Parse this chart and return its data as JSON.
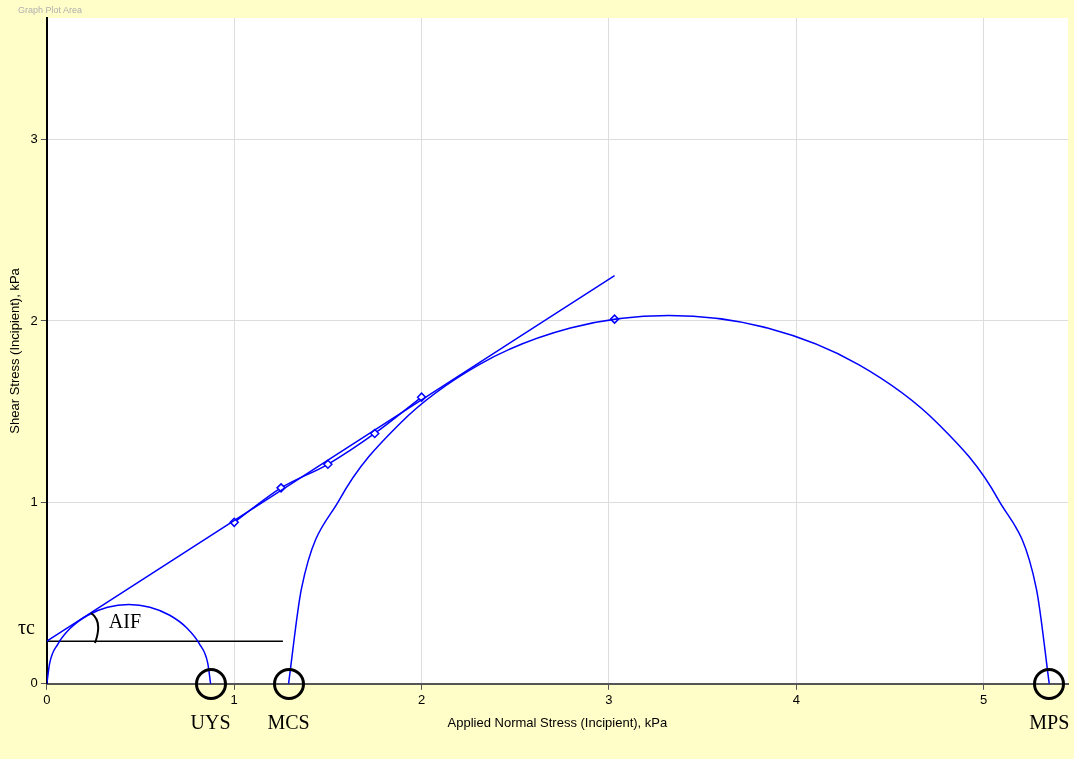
{
  "chart_data": {
    "type": "line",
    "xlabel": "Applied Normal Stress (Incipient), kPa",
    "ylabel": "Shear Stress (Incipient), kPa",
    "xlim": [
      0,
      5.45
    ],
    "ylim": [
      0,
      3.67
    ],
    "xticks": [
      0,
      1,
      2,
      3,
      4,
      5
    ],
    "yticks": [
      0,
      1,
      2,
      3
    ],
    "grid": true,
    "legend": false,
    "line_style": "solid",
    "series": [
      {
        "type": "line",
        "color": "#0000ff",
        "marker": "none",
        "x": [
          0,
          0.015,
          0.059,
          0.128,
          0.219,
          0.324,
          0.437,
          0.55,
          0.656,
          0.746,
          0.815,
          0.859,
          0.874
        ],
        "values": [
          0,
          0.113,
          0.219,
          0.309,
          0.378,
          0.422,
          0.437,
          0.422,
          0.378,
          0.309,
          0.219,
          0.113,
          0
        ]
      },
      {
        "type": "line",
        "color": "#0000ff",
        "marker": "none",
        "x": [
          1.29,
          1.359,
          1.562,
          1.885,
          2.305,
          2.794,
          3.32,
          3.846,
          4.335,
          4.755,
          5.078,
          5.281,
          5.35
        ],
        "values": [
          0,
          0.525,
          1.015,
          1.435,
          1.758,
          1.961,
          2.03,
          1.961,
          1.758,
          1.435,
          1.015,
          0.525,
          0
        ]
      },
      {
        "type": "line",
        "color": "#0000ff",
        "marker": "none",
        "x": [
          0,
          3.03
        ],
        "values": [
          0.235,
          2.25
        ]
      },
      {
        "type": "line",
        "color": "#0000ff",
        "marker": "diamond",
        "x": [
          1.0,
          1.25,
          1.5,
          1.75,
          2.0
        ],
        "values": [
          0.89,
          1.08,
          1.21,
          1.38,
          1.58
        ]
      },
      {
        "type": "scatter",
        "color": "#0000ff",
        "marker": "diamond",
        "x": [
          3.03
        ],
        "values": [
          2.01
        ]
      },
      {
        "type": "line",
        "color": "#000000",
        "marker": "none",
        "x": [
          0,
          1.26
        ],
        "values": [
          0.235,
          0.235
        ]
      }
    ],
    "annotations": [
      "Graph Plot Area",
      {
        "text": "τc",
        "x": 0,
        "y": 0.235
      },
      "AIF",
      {
        "text": "UYS",
        "x": 0.874,
        "y": 0
      },
      {
        "text": "MCS",
        "x": 1.29,
        "y": 0
      },
      {
        "text": "MPS",
        "x": 5.35,
        "y": 0
      }
    ]
  }
}
